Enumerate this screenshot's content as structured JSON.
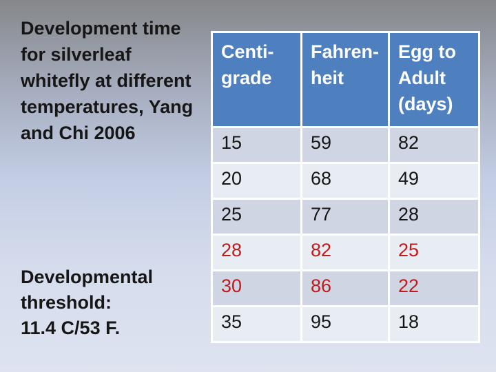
{
  "slide": {
    "title_lines": [
      "Development time",
      "for silverleaf",
      "whitefly at different",
      "temperatures, Yang",
      "and Chi 2006"
    ],
    "threshold_lines": [
      "Developmental",
      "threshold:",
      "11.4 C/53 F."
    ]
  },
  "table": {
    "headers": {
      "centigrade": "Centi-\ngrade",
      "fahrenheit": "Fahren-\nheit",
      "egg_to_adult": "Egg to\nAdult\n(days)"
    },
    "rows": [
      {
        "centigrade": "15",
        "fahrenheit": "59",
        "egg_to_adult": "82",
        "highlight": false
      },
      {
        "centigrade": "20",
        "fahrenheit": "68",
        "egg_to_adult": "49",
        "highlight": false
      },
      {
        "centigrade": "25",
        "fahrenheit": "77",
        "egg_to_adult": "28",
        "highlight": false
      },
      {
        "centigrade": "28",
        "fahrenheit": "82",
        "egg_to_adult": "25",
        "highlight": true
      },
      {
        "centigrade": "30",
        "fahrenheit": "86",
        "egg_to_adult": "22",
        "highlight": true
      },
      {
        "centigrade": "35",
        "fahrenheit": "95",
        "egg_to_adult": "18",
        "highlight": false
      }
    ]
  },
  "colors": {
    "bg_top": "#85878A",
    "bg_mid": "#C3CDE4",
    "bg_bottom": "#DEE3F0",
    "header_bg": "#4E7FBE",
    "band_dark": "#CFD5E3",
    "band_light": "#E8ECF3",
    "highlight_red": "#C01B1B",
    "text_dark": "#161616"
  }
}
